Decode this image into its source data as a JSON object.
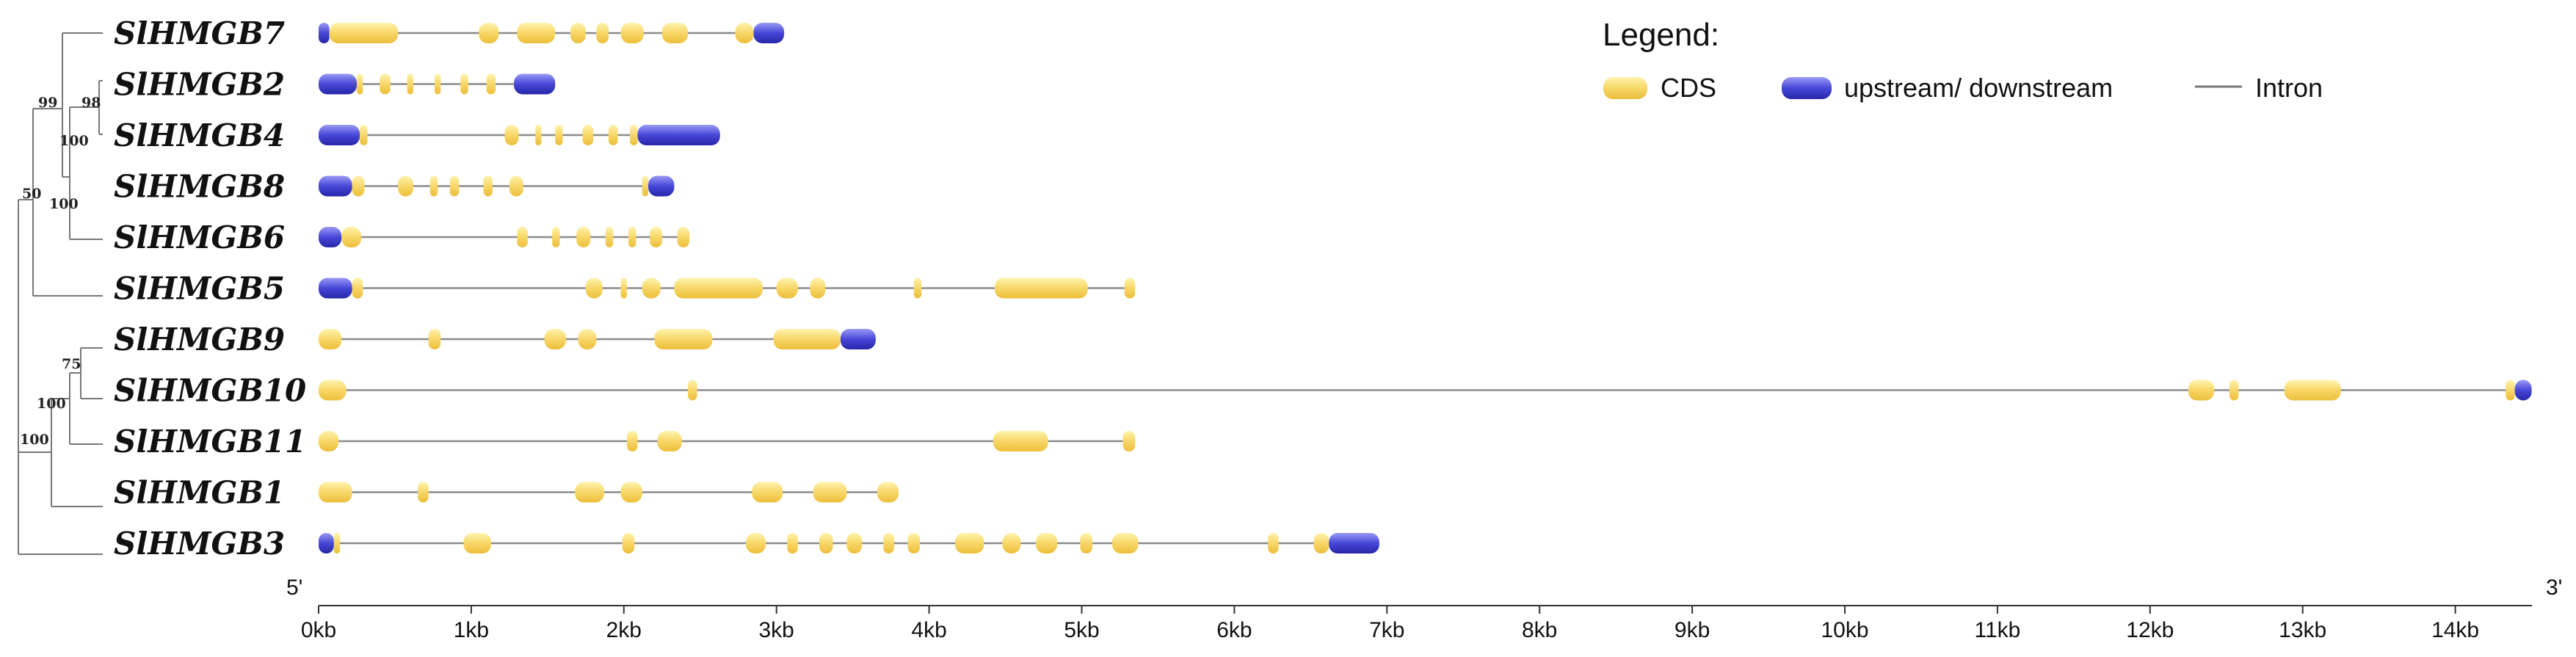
{
  "legend": {
    "title": "Legend:",
    "cds": "CDS",
    "utr": "upstream/ downstream",
    "intron": "Intron"
  },
  "colors": {
    "cds": "#F7D15A",
    "cds_light": "#FFF1A8",
    "utr": "#3E3ED0",
    "utr_light": "#8C8CF2",
    "intron": "#8A8A8A",
    "tree": "#777777"
  },
  "axis": {
    "unit": "kb",
    "left_end": "5'",
    "right_end": "3'",
    "ticks": [
      "0kb",
      "1kb",
      "2kb",
      "3kb",
      "4kb",
      "5kb",
      "6kb",
      "7kb",
      "8kb",
      "9kb",
      "10kb",
      "11kb",
      "12kb",
      "13kb",
      "14kb"
    ],
    "max_kb": 14.5
  },
  "tree": {
    "bootstrap": [
      "99",
      "98",
      "100",
      "100",
      "50",
      "75",
      "100",
      "100"
    ]
  },
  "chart_data": {
    "type": "gene-structure",
    "genes": [
      {
        "name": "SlHMGB7",
        "length": 3.05,
        "features": [
          [
            "u",
            0,
            0.07
          ],
          [
            "c",
            0.07,
            0.52
          ],
          [
            "c",
            1.05,
            1.18
          ],
          [
            "c",
            1.3,
            1.55
          ],
          [
            "c",
            1.65,
            1.75
          ],
          [
            "c",
            1.82,
            1.9
          ],
          [
            "c",
            1.98,
            2.13
          ],
          [
            "c",
            2.25,
            2.42
          ],
          [
            "c",
            2.73,
            2.85
          ],
          [
            "u",
            2.85,
            3.05
          ]
        ]
      },
      {
        "name": "SlHMGB2",
        "length": 1.55,
        "features": [
          [
            "u",
            0,
            0.25
          ],
          [
            "c",
            0.25,
            0.29
          ],
          [
            "c",
            0.4,
            0.47
          ],
          [
            "c",
            0.58,
            0.62
          ],
          [
            "c",
            0.76,
            0.8
          ],
          [
            "c",
            0.93,
            0.98
          ],
          [
            "c",
            1.1,
            1.16
          ],
          [
            "u",
            1.28,
            1.55
          ]
        ]
      },
      {
        "name": "SlHMGB4",
        "length": 2.63,
        "features": [
          [
            "u",
            0,
            0.27
          ],
          [
            "c",
            0.27,
            0.32
          ],
          [
            "c",
            1.22,
            1.31
          ],
          [
            "c",
            1.42,
            1.46
          ],
          [
            "c",
            1.55,
            1.6
          ],
          [
            "c",
            1.73,
            1.8
          ],
          [
            "c",
            1.9,
            1.96
          ],
          [
            "c",
            2.04,
            2.09
          ],
          [
            "u",
            2.09,
            2.63
          ]
        ]
      },
      {
        "name": "SlHMGB8",
        "length": 2.33,
        "features": [
          [
            "u",
            0,
            0.22
          ],
          [
            "c",
            0.22,
            0.3
          ],
          [
            "c",
            0.52,
            0.62
          ],
          [
            "c",
            0.73,
            0.78
          ],
          [
            "c",
            0.86,
            0.92
          ],
          [
            "c",
            1.08,
            1.14
          ],
          [
            "c",
            1.25,
            1.34
          ],
          [
            "c",
            2.12,
            2.16
          ],
          [
            "u",
            2.16,
            2.33
          ]
        ]
      },
      {
        "name": "SlHMGB6",
        "length": 2.43,
        "features": [
          [
            "u",
            0,
            0.15
          ],
          [
            "c",
            0.15,
            0.28
          ],
          [
            "c",
            1.3,
            1.37
          ],
          [
            "c",
            1.53,
            1.58
          ],
          [
            "c",
            1.69,
            1.78
          ],
          [
            "c",
            1.88,
            1.93
          ],
          [
            "c",
            2.03,
            2.08
          ],
          [
            "c",
            2.17,
            2.25
          ],
          [
            "c",
            2.35,
            2.43
          ]
        ]
      },
      {
        "name": "SlHMGB5",
        "length": 5.35,
        "features": [
          [
            "u",
            0,
            0.22
          ],
          [
            "c",
            0.22,
            0.29
          ],
          [
            "c",
            1.75,
            1.86
          ],
          [
            "c",
            1.98,
            2.02
          ],
          [
            "c",
            2.12,
            2.24
          ],
          [
            "c",
            2.33,
            2.91
          ],
          [
            "c",
            3.0,
            3.14
          ],
          [
            "c",
            3.22,
            3.32
          ],
          [
            "c",
            3.9,
            3.95
          ],
          [
            "c",
            4.43,
            5.04
          ],
          [
            "c",
            5.28,
            5.35
          ]
        ]
      },
      {
        "name": "SlHMGB9",
        "length": 3.65,
        "features": [
          [
            "c",
            0,
            0.15
          ],
          [
            "c",
            0.72,
            0.8
          ],
          [
            "c",
            1.48,
            1.62
          ],
          [
            "c",
            1.7,
            1.82
          ],
          [
            "c",
            2.2,
            2.58
          ],
          [
            "c",
            2.98,
            3.42
          ],
          [
            "u",
            3.42,
            3.65
          ]
        ]
      },
      {
        "name": "SlHMGB10",
        "length": 14.5,
        "features": [
          [
            "c",
            0,
            0.18
          ],
          [
            "c",
            2.42,
            2.48
          ],
          [
            "c",
            12.25,
            12.42
          ],
          [
            "c",
            12.52,
            12.58
          ],
          [
            "c",
            12.88,
            13.25
          ],
          [
            "c",
            14.33,
            14.39
          ],
          [
            "u",
            14.39,
            14.5
          ]
        ]
      },
      {
        "name": "SlHMGB11",
        "length": 5.35,
        "features": [
          [
            "c",
            0,
            0.13
          ],
          [
            "c",
            2.02,
            2.09
          ],
          [
            "c",
            2.22,
            2.38
          ],
          [
            "c",
            4.42,
            4.78
          ],
          [
            "c",
            5.27,
            5.35
          ]
        ]
      },
      {
        "name": "SlHMGB1",
        "length": 3.8,
        "features": [
          [
            "c",
            0,
            0.22
          ],
          [
            "c",
            0.65,
            0.72
          ],
          [
            "c",
            1.68,
            1.87
          ],
          [
            "c",
            1.98,
            2.12
          ],
          [
            "c",
            2.84,
            3.04
          ],
          [
            "c",
            3.24,
            3.46
          ],
          [
            "c",
            3.66,
            3.8
          ]
        ]
      },
      {
        "name": "SlHMGB3",
        "length": 6.95,
        "features": [
          [
            "u",
            0,
            0.1
          ],
          [
            "c",
            0.1,
            0.14
          ],
          [
            "c",
            0.95,
            1.13
          ],
          [
            "c",
            1.99,
            2.07
          ],
          [
            "c",
            2.8,
            2.93
          ],
          [
            "c",
            3.07,
            3.14
          ],
          [
            "c",
            3.28,
            3.37
          ],
          [
            "c",
            3.46,
            3.56
          ],
          [
            "c",
            3.7,
            3.77
          ],
          [
            "c",
            3.86,
            3.94
          ],
          [
            "c",
            4.17,
            4.36
          ],
          [
            "c",
            4.48,
            4.6
          ],
          [
            "c",
            4.7,
            4.84
          ],
          [
            "c",
            4.99,
            5.07
          ],
          [
            "c",
            5.2,
            5.37
          ],
          [
            "c",
            6.22,
            6.29
          ],
          [
            "c",
            6.52,
            6.62
          ],
          [
            "u",
            6.62,
            6.95
          ]
        ]
      }
    ]
  }
}
